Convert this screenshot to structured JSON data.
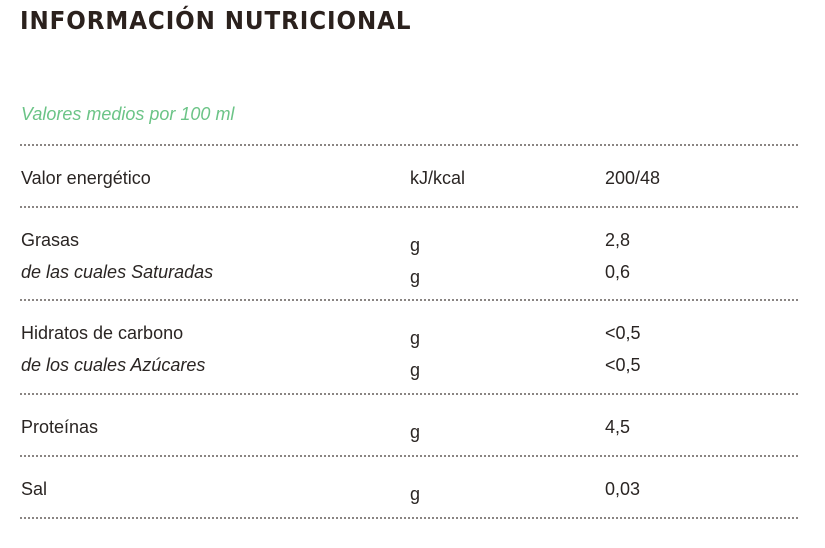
{
  "title": "INFORMACIÓN NUTRICIONAL",
  "subtitle": "Valores medios por 100 ml",
  "rows": [
    {
      "label": "Valor energético",
      "unit": "kJ/kcal",
      "value": "200/48"
    },
    {
      "label": "Grasas",
      "unit": "g",
      "value": "2,8"
    },
    {
      "label": "de las cuales Saturadas",
      "unit": "g",
      "value": "0,6"
    },
    {
      "label": "Hidratos de carbono",
      "unit": "g",
      "value": "<0,5"
    },
    {
      "label": "de los cuales Azúcares",
      "unit": "g",
      "value": "<0,5"
    },
    {
      "label": "Proteínas",
      "unit": "g",
      "value": "4,5"
    },
    {
      "label": "Sal",
      "unit": "g",
      "value": "0,03"
    }
  ],
  "colors": {
    "subtitle": "#6cc487",
    "text": "#2a2523",
    "divider": "#8a8583"
  }
}
